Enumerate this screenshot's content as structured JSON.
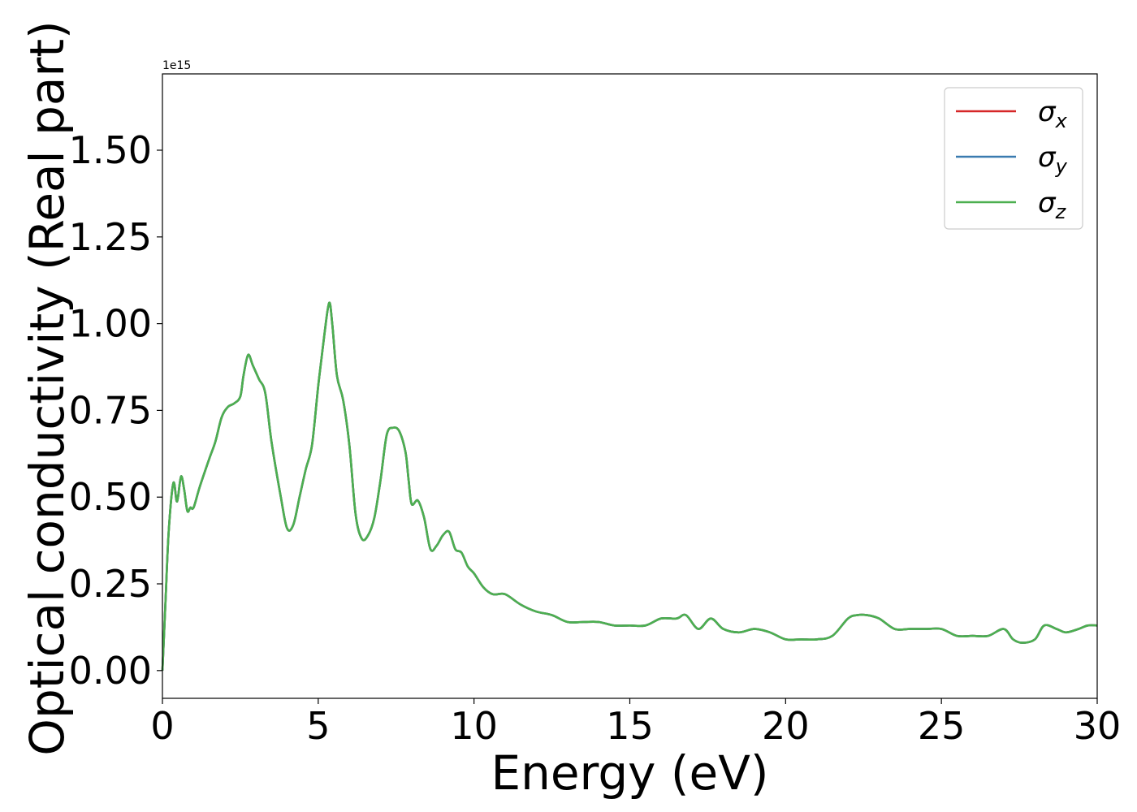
{
  "chart_data": {
    "type": "line",
    "xlabel": "Energy (eV)",
    "ylabel": "Optical conductivity (Real part)",
    "y_offset_text": "1e15",
    "xlim": [
      0,
      30
    ],
    "ylim": [
      -0.08,
      1.72
    ],
    "xticks": [
      0,
      5,
      10,
      15,
      20,
      25,
      30
    ],
    "yticks": [
      0.0,
      0.25,
      0.5,
      0.75,
      1.0,
      1.25,
      1.5
    ],
    "ytick_labels": [
      "0.00",
      "0.25",
      "0.50",
      "0.75",
      "1.00",
      "1.25",
      "1.50"
    ],
    "legend_position": "top-right",
    "legend": [
      {
        "key": "x",
        "color": "#d62728"
      },
      {
        "key": "y",
        "color": "#3a7bb0"
      },
      {
        "key": "z",
        "color": "#4caf50"
      }
    ],
    "series": [
      {
        "name": "σx",
        "color": "#d62728",
        "shared_points": "z"
      },
      {
        "name": "σy",
        "color": "#3a7bb0",
        "shared_points": "z"
      },
      {
        "name": "σz",
        "color": "#4caf50",
        "x": [
          0,
          0.1,
          0.2,
          0.35,
          0.45,
          0.5,
          0.6,
          0.7,
          0.8,
          0.9,
          1.0,
          1.2,
          1.5,
          1.7,
          1.9,
          2.1,
          2.3,
          2.5,
          2.6,
          2.75,
          2.9,
          3.1,
          3.3,
          3.5,
          3.8,
          4.0,
          4.2,
          4.4,
          4.6,
          4.8,
          5.0,
          5.2,
          5.35,
          5.45,
          5.6,
          5.8,
          6.0,
          6.2,
          6.4,
          6.6,
          6.8,
          7.0,
          7.2,
          7.4,
          7.6,
          7.8,
          7.9,
          8.0,
          8.2,
          8.4,
          8.6,
          8.8,
          9.0,
          9.2,
          9.4,
          9.6,
          9.8,
          10.0,
          10.3,
          10.6,
          11.0,
          11.5,
          12.0,
          12.5,
          13.0,
          13.5,
          14.0,
          14.5,
          15.0,
          15.5,
          16.0,
          16.5,
          16.8,
          17.2,
          17.6,
          18.0,
          18.5,
          19.0,
          19.5,
          20.0,
          20.5,
          21.0,
          21.5,
          22.0,
          22.3,
          22.6,
          23.0,
          23.5,
          24.0,
          24.5,
          25.0,
          25.5,
          26.0,
          26.5,
          27.0,
          27.3,
          27.6,
          28.0,
          28.3,
          28.7,
          29.0,
          29.4,
          29.7,
          30.0
        ],
        "y": [
          0.0,
          0.2,
          0.4,
          0.54,
          0.49,
          0.5,
          0.56,
          0.52,
          0.46,
          0.47,
          0.47,
          0.53,
          0.61,
          0.66,
          0.73,
          0.76,
          0.77,
          0.79,
          0.85,
          0.91,
          0.88,
          0.84,
          0.8,
          0.66,
          0.5,
          0.41,
          0.42,
          0.5,
          0.58,
          0.65,
          0.82,
          0.97,
          1.06,
          1.0,
          0.85,
          0.78,
          0.65,
          0.45,
          0.38,
          0.39,
          0.44,
          0.55,
          0.68,
          0.7,
          0.69,
          0.63,
          0.55,
          0.48,
          0.49,
          0.44,
          0.35,
          0.36,
          0.39,
          0.4,
          0.35,
          0.34,
          0.3,
          0.28,
          0.24,
          0.22,
          0.22,
          0.19,
          0.17,
          0.16,
          0.14,
          0.14,
          0.14,
          0.13,
          0.13,
          0.13,
          0.15,
          0.15,
          0.16,
          0.12,
          0.15,
          0.12,
          0.11,
          0.12,
          0.11,
          0.09,
          0.09,
          0.09,
          0.1,
          0.15,
          0.16,
          0.16,
          0.15,
          0.12,
          0.12,
          0.12,
          0.12,
          0.1,
          0.1,
          0.1,
          0.12,
          0.09,
          0.08,
          0.09,
          0.13,
          0.12,
          0.11,
          0.12,
          0.13,
          0.13
        ]
      }
    ]
  }
}
